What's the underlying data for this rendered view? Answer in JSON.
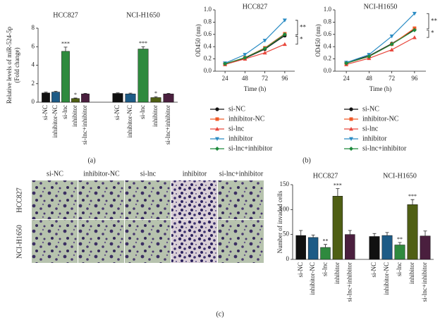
{
  "chart_data": [
    {
      "type": "bar",
      "ylabel": [
        "Relative levels of miR-524-5p",
        "(Fold change)"
      ],
      "categories": [
        "si-NC",
        "inhibitor-NC",
        "si-lnc",
        "inhibitor",
        "si-lnc+inhibitor"
      ],
      "colors": [
        "#111111",
        "#1d5b86",
        "#2f8a3e",
        "#4f5f14",
        "#4a1f3e"
      ],
      "groups": [
        {
          "name": "HCC827",
          "values": [
            1.0,
            1.1,
            5.5,
            0.4,
            0.9
          ],
          "errors": [
            0.08,
            0.08,
            0.45,
            0.06,
            0.06
          ],
          "annotations": [
            null,
            null,
            "***",
            "*",
            null
          ]
        },
        {
          "name": "NCI-H1650",
          "values": [
            0.95,
            0.9,
            5.75,
            0.5,
            0.9
          ],
          "errors": [
            0.06,
            0.08,
            0.25,
            0.1,
            0.06
          ],
          "annotations": [
            null,
            null,
            "***",
            "*",
            null
          ]
        }
      ],
      "ylim": [
        0,
        8
      ],
      "yticks": [
        0,
        2,
        4,
        6,
        8
      ]
    },
    {
      "type": "line",
      "title": "HCC827",
      "xlabel": "Time (h)",
      "ylabel": "OD450 (nm)",
      "x": [
        24,
        48,
        72,
        96
      ],
      "xlim": [
        12,
        108
      ],
      "xticks": [
        24,
        48,
        72,
        96
      ],
      "ylim": [
        0,
        1.0
      ],
      "yticks": [
        {
          "value": 0,
          "label": "0.0"
        },
        0.2,
        0.4,
        0.6,
        0.8,
        {
          "value": 1.0,
          "label": "1.0"
        }
      ],
      "series": [
        {
          "name": "si-NC",
          "color": "#111111",
          "marker": "circle",
          "values": [
            0.12,
            0.21,
            0.36,
            0.58
          ]
        },
        {
          "name": "inhibitor-NC",
          "color": "#f05a28",
          "marker": "square",
          "values": [
            0.12,
            0.22,
            0.38,
            0.61
          ]
        },
        {
          "name": "si-lnc",
          "color": "#e8473c",
          "marker": "triangle",
          "values": [
            0.11,
            0.2,
            0.3,
            0.44
          ]
        },
        {
          "name": "inhibitor",
          "color": "#2b8cc4",
          "marker": "triangle-down",
          "values": [
            0.13,
            0.27,
            0.5,
            0.83
          ]
        },
        {
          "name": "si-lnc+inhibitor",
          "color": "#1e8a3c",
          "marker": "diamond",
          "values": [
            0.12,
            0.22,
            0.37,
            0.6
          ]
        }
      ],
      "annotations": [
        "**",
        "*"
      ]
    },
    {
      "type": "line",
      "title": "NCI-H1650",
      "xlabel": "Time (h)",
      "ylabel": "OD450 (nm)",
      "x": [
        24,
        48,
        72,
        96
      ],
      "xlim": [
        12,
        108
      ],
      "xticks": [
        24,
        48,
        72,
        96
      ],
      "ylim": [
        0,
        1.0
      ],
      "yticks": [
        {
          "value": 0,
          "label": "0.0"
        },
        0.2,
        0.4,
        0.6,
        0.8,
        {
          "value": 1.0,
          "label": "1.0"
        }
      ],
      "series": [
        {
          "name": "si-NC",
          "color": "#111111",
          "marker": "circle",
          "values": [
            0.14,
            0.25,
            0.45,
            0.68
          ]
        },
        {
          "name": "inhibitor-NC",
          "color": "#f05a28",
          "marker": "square",
          "values": [
            0.13,
            0.24,
            0.44,
            0.7
          ]
        },
        {
          "name": "si-lnc",
          "color": "#e8473c",
          "marker": "triangle",
          "values": [
            0.11,
            0.21,
            0.35,
            0.55
          ]
        },
        {
          "name": "inhibitor",
          "color": "#2b8cc4",
          "marker": "triangle-down",
          "values": [
            0.14,
            0.27,
            0.57,
            0.94
          ]
        },
        {
          "name": "si-lnc+inhibitor",
          "color": "#1e8a3c",
          "marker": "diamond",
          "values": [
            0.13,
            0.24,
            0.44,
            0.67
          ]
        }
      ],
      "annotations": [
        "**",
        "*"
      ]
    },
    {
      "type": "bar",
      "ylabel": [
        "Number of invaded cells"
      ],
      "categories": [
        "si-NC",
        "inhibitor-NC",
        "si-lnc",
        "inhibitor",
        "si-lnc+inhibitor"
      ],
      "colors": [
        "#111111",
        "#1d5b86",
        "#2f8a3e",
        "#4f5f14",
        "#4a1f3e"
      ],
      "groups": [
        {
          "name": "HCC827",
          "values": [
            48,
            44,
            24,
            127,
            50
          ],
          "errors": [
            10,
            5,
            6,
            15,
            8
          ],
          "annotations": [
            null,
            null,
            "**",
            "***",
            null
          ]
        },
        {
          "name": "NCI-H1650",
          "values": [
            46,
            48,
            29,
            110,
            47
          ],
          "errors": [
            6,
            6,
            5,
            10,
            10
          ],
          "annotations": [
            null,
            null,
            "**",
            "***",
            null
          ]
        }
      ],
      "ylim": [
        0,
        150
      ],
      "yticks": [
        0,
        50,
        100,
        150
      ]
    }
  ],
  "images": {
    "columns": [
      "si-NC",
      "inhibitor-NC",
      "si-lnc",
      "inhibitor",
      "si-lnc+inhibitor"
    ],
    "rows": [
      "HCC827",
      "NCI-H1650"
    ]
  },
  "panel_labels": [
    "(a)",
    "(b)",
    "(c)"
  ]
}
